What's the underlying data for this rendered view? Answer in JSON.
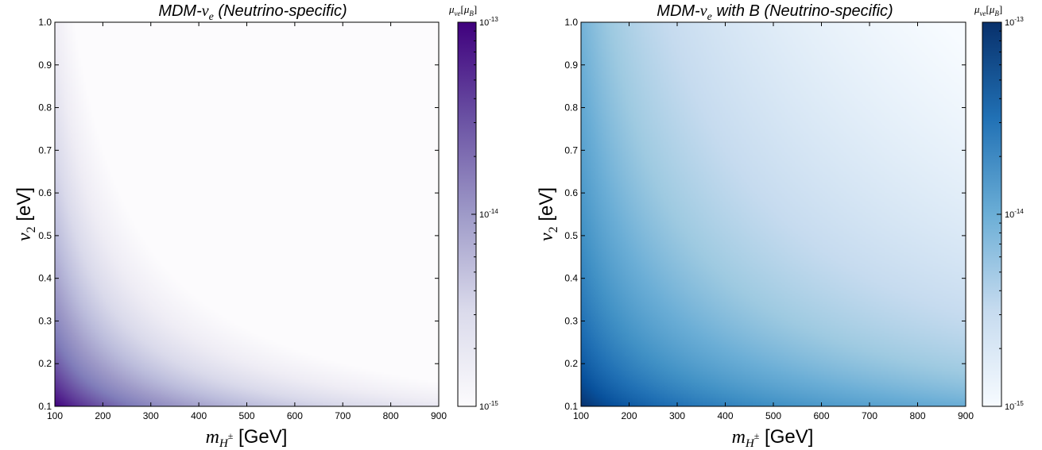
{
  "chart_data": [
    {
      "type": "heatmap",
      "title": "MDM-νe (Neutrino-specific)",
      "xlabel": "m_H± [GeV]",
      "ylabel": "v2 [eV]",
      "xlim": [
        100,
        900
      ],
      "ylim": [
        0.1,
        1.0
      ],
      "xticks": [
        "100",
        "200",
        "300",
        "400",
        "500",
        "600",
        "700",
        "800",
        "900"
      ],
      "yticks": [
        "0.1",
        "0.2",
        "0.3",
        "0.4",
        "0.5",
        "0.6",
        "0.7",
        "0.8",
        "0.9",
        "1.0"
      ],
      "colorbar": {
        "label": "μνe[μB]",
        "scale": "log",
        "range": [
          1e-15,
          1e-13
        ],
        "tick_labels": [
          "10-15",
          "10-14",
          "10-13"
        ],
        "colormap": "Purples",
        "color_low": "#fcfbfd",
        "color_mid": "#9e9ac8",
        "color_high": "#3f007d"
      },
      "sample_values": [
        {
          "x": 100,
          "y": 0.1,
          "z": 1e-13
        },
        {
          "x": 300,
          "y": 0.2,
          "z": 1.5e-14
        },
        {
          "x": 200,
          "y": 0.5,
          "z": 6e-15
        },
        {
          "x": 900,
          "y": 0.1,
          "z": 3e-15
        },
        {
          "x": 500,
          "y": 0.5,
          "z": 1e-15
        }
      ]
    },
    {
      "type": "heatmap",
      "title": "MDM-νe with B (Neutrino-specific)",
      "xlabel": "m_H± [GeV]",
      "ylabel": "v2 [eV]",
      "xlim": [
        100,
        900
      ],
      "ylim": [
        0.1,
        1.0
      ],
      "xticks": [
        "100",
        "200",
        "300",
        "400",
        "500",
        "600",
        "700",
        "800",
        "900"
      ],
      "yticks": [
        "0.1",
        "0.2",
        "0.3",
        "0.4",
        "0.5",
        "0.6",
        "0.7",
        "0.8",
        "0.9",
        "1.0"
      ],
      "colorbar": {
        "label": "μνe[μB]",
        "scale": "log",
        "range": [
          1e-15,
          1e-13
        ],
        "tick_labels": [
          "10-15",
          "10-14",
          "10-13"
        ],
        "colormap": "Blues",
        "color_low": "#f7fbff",
        "color_mid": "#6baed6",
        "color_high": "#08306b"
      },
      "sample_values": [
        {
          "x": 100,
          "y": 0.1,
          "z": 1e-13
        },
        {
          "x": 300,
          "y": 0.2,
          "z": 8e-14
        },
        {
          "x": 100,
          "y": 1.0,
          "z": 2e-14
        },
        {
          "x": 900,
          "y": 0.1,
          "z": 1e-14
        },
        {
          "x": 900,
          "y": 1.0,
          "z": 1e-15
        }
      ]
    }
  ]
}
